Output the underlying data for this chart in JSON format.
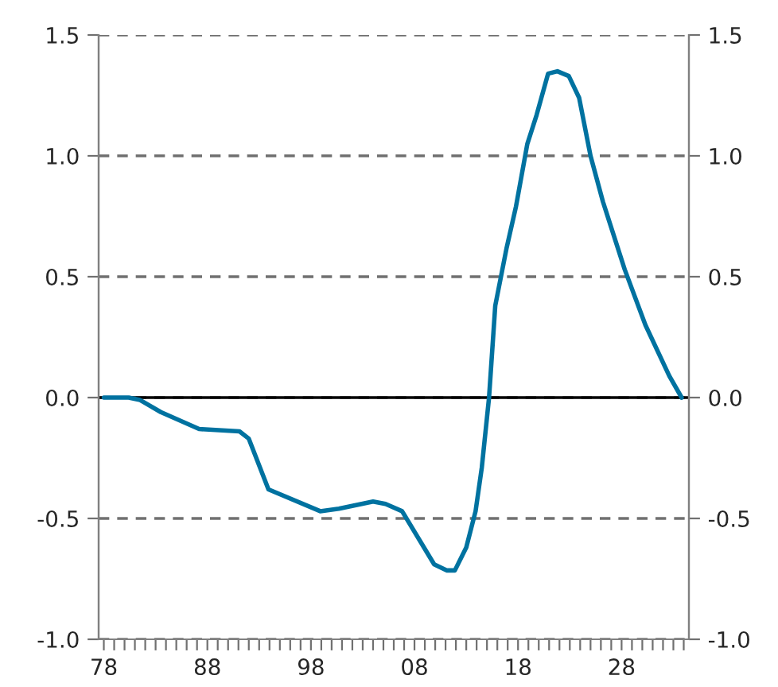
{
  "chart_data": {
    "type": "line",
    "x": [
      1978,
      1980.4,
      1981.5,
      1983.5,
      1987.2,
      1991.1,
      1992,
      1993.9,
      1998.9,
      2000.7,
      2004,
      2005.2,
      2006.8,
      2009.9,
      2011.1,
      2011.9,
      2013,
      2013.9,
      2014.5,
      2015.2,
      2015.8,
      2016.9,
      2017.8,
      2018.9,
      2019.8,
      2020.9,
      2021.8,
      2022.9,
      2023.9,
      2025,
      2026.2,
      2028.3,
      2030.3,
      2032.6,
      2033.8
    ],
    "series": [
      {
        "color": "#0072a0",
        "values": [
          0,
          0,
          -0.01,
          -0.06,
          -0.13,
          -0.14,
          -0.17,
          -0.38,
          -0.47,
          -0.46,
          -0.43,
          -0.44,
          -0.47,
          -0.69,
          -0.715,
          -0.715,
          -0.62,
          -0.47,
          -0.29,
          0,
          0.38,
          0.62,
          0.79,
          1.05,
          1.17,
          1.34,
          1.35,
          1.33,
          1.24,
          1.0,
          0.81,
          0.53,
          0.3,
          0.09,
          0
        ]
      }
    ],
    "xlim": [
      1977.5,
      2034.5
    ],
    "xticks": [
      {
        "value": 1978,
        "label": "78"
      },
      {
        "value": 1979,
        "label": null
      },
      {
        "value": 1980,
        "label": null
      },
      {
        "value": 1981,
        "label": null
      },
      {
        "value": 1982,
        "label": null
      },
      {
        "value": 1983,
        "label": null
      },
      {
        "value": 1984,
        "label": null
      },
      {
        "value": 1985,
        "label": null
      },
      {
        "value": 1986,
        "label": null
      },
      {
        "value": 1987,
        "label": null
      },
      {
        "value": 1988,
        "label": "88"
      },
      {
        "value": 1989,
        "label": null
      },
      {
        "value": 1990,
        "label": null
      },
      {
        "value": 1991,
        "label": null
      },
      {
        "value": 1992,
        "label": null
      },
      {
        "value": 1993,
        "label": null
      },
      {
        "value": 1994,
        "label": null
      },
      {
        "value": 1995,
        "label": null
      },
      {
        "value": 1996,
        "label": null
      },
      {
        "value": 1997,
        "label": null
      },
      {
        "value": 1998,
        "label": "98"
      },
      {
        "value": 1999,
        "label": null
      },
      {
        "value": 2000,
        "label": null
      },
      {
        "value": 2001,
        "label": null
      },
      {
        "value": 2002,
        "label": null
      },
      {
        "value": 2003,
        "label": null
      },
      {
        "value": 2004,
        "label": null
      },
      {
        "value": 2005,
        "label": null
      },
      {
        "value": 2006,
        "label": null
      },
      {
        "value": 2007,
        "label": null
      },
      {
        "value": 2008,
        "label": "08"
      },
      {
        "value": 2009,
        "label": null
      },
      {
        "value": 2010,
        "label": null
      },
      {
        "value": 2011,
        "label": null
      },
      {
        "value": 2012,
        "label": null
      },
      {
        "value": 2013,
        "label": null
      },
      {
        "value": 2014,
        "label": null
      },
      {
        "value": 2015,
        "label": null
      },
      {
        "value": 2016,
        "label": null
      },
      {
        "value": 2017,
        "label": null
      },
      {
        "value": 2018,
        "label": "18"
      },
      {
        "value": 2019,
        "label": null
      },
      {
        "value": 2020,
        "label": null
      },
      {
        "value": 2021,
        "label": null
      },
      {
        "value": 2022,
        "label": null
      },
      {
        "value": 2023,
        "label": null
      },
      {
        "value": 2024,
        "label": null
      },
      {
        "value": 2025,
        "label": null
      },
      {
        "value": 2026,
        "label": null
      },
      {
        "value": 2027,
        "label": null
      },
      {
        "value": 2028,
        "label": "28"
      },
      {
        "value": 2029,
        "label": null
      },
      {
        "value": 2030,
        "label": null
      },
      {
        "value": 2031,
        "label": null
      },
      {
        "value": 2032,
        "label": null
      },
      {
        "value": 2033,
        "label": null
      },
      {
        "value": 2034,
        "label": null
      }
    ],
    "ylim": [
      -1.0,
      1.5
    ],
    "yticks": [
      {
        "value": -1.0,
        "label": "-1.0"
      },
      {
        "value": -0.5,
        "label": "-0.5"
      },
      {
        "value": 0.0,
        "label": "0.0"
      },
      {
        "value": 0.5,
        "label": "0.5"
      },
      {
        "value": 1.0,
        "label": "1.0"
      },
      {
        "value": 1.5,
        "label": "1.5"
      }
    ],
    "y2lim": [
      -1.0,
      1.5
    ],
    "y2ticks": [
      {
        "value": -1.0,
        "label": "-1.0"
      },
      {
        "value": -0.5,
        "label": "-0.5"
      },
      {
        "value": 0.0,
        "label": "0.0"
      },
      {
        "value": 0.5,
        "label": "0.5"
      },
      {
        "value": 1.0,
        "label": "1.0"
      },
      {
        "value": 1.5,
        "label": "1.5"
      }
    ],
    "grid": "y",
    "legend": false,
    "marker": "none",
    "line_style": "solid",
    "ref_lines": [
      {
        "axis": "y",
        "value": 0,
        "color": "#000000",
        "line_style": "solid"
      }
    ]
  }
}
